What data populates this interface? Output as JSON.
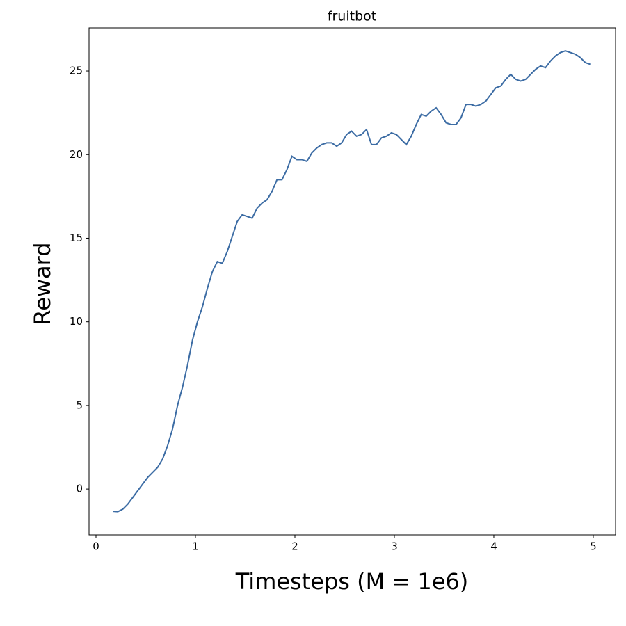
{
  "chart_data": {
    "type": "line",
    "title": "fruitbot",
    "x_label": "Timesteps (M = 1e6)",
    "y_label": "Reward",
    "x": [
      0.17,
      0.22,
      0.27,
      0.32,
      0.37,
      0.42,
      0.47,
      0.52,
      0.57,
      0.62,
      0.67,
      0.72,
      0.77,
      0.82,
      0.87,
      0.92,
      0.97,
      1.02,
      1.07,
      1.12,
      1.17,
      1.22,
      1.27,
      1.32,
      1.37,
      1.42,
      1.47,
      1.52,
      1.57,
      1.62,
      1.67,
      1.72,
      1.77,
      1.82,
      1.87,
      1.92,
      1.97,
      2.02,
      2.07,
      2.12,
      2.17,
      2.22,
      2.27,
      2.32,
      2.37,
      2.42,
      2.47,
      2.52,
      2.57,
      2.62,
      2.67,
      2.72,
      2.77,
      2.82,
      2.87,
      2.92,
      2.97,
      3.02,
      3.07,
      3.12,
      3.17,
      3.22,
      3.27,
      3.32,
      3.37,
      3.42,
      3.47,
      3.52,
      3.57,
      3.62,
      3.67,
      3.72,
      3.77,
      3.82,
      3.87,
      3.92,
      3.97,
      4.02,
      4.07,
      4.12,
      4.17,
      4.22,
      4.27,
      4.32,
      4.37,
      4.42,
      4.47,
      4.52,
      4.57,
      4.62,
      4.67,
      4.72,
      4.77,
      4.82,
      4.87,
      4.92,
      4.97
    ],
    "series": [
      {
        "name": "fruitbot",
        "color": "#3c6ca4",
        "values": [
          -1.33,
          -1.35,
          -1.2,
          -0.9,
          -0.5,
          -0.1,
          0.3,
          0.7,
          1.0,
          1.3,
          1.8,
          2.6,
          3.6,
          5.0,
          6.1,
          7.4,
          8.9,
          10.0,
          10.9,
          12.0,
          13.0,
          13.6,
          13.5,
          14.2,
          15.1,
          16.0,
          16.4,
          16.3,
          16.2,
          16.8,
          17.1,
          17.3,
          17.8,
          18.5,
          18.5,
          19.1,
          19.9,
          19.7,
          19.7,
          19.6,
          20.1,
          20.4,
          20.6,
          20.7,
          20.7,
          20.5,
          20.7,
          21.2,
          21.4,
          21.1,
          21.2,
          21.5,
          20.6,
          20.6,
          21.0,
          21.1,
          21.3,
          21.2,
          20.9,
          20.6,
          21.1,
          21.8,
          22.4,
          22.3,
          22.6,
          22.8,
          22.4,
          21.9,
          21.8,
          21.8,
          22.2,
          23.0,
          23.0,
          22.9,
          23.0,
          23.2,
          23.6,
          24.0,
          24.1,
          24.5,
          24.8,
          24.5,
          24.4,
          24.5,
          24.8,
          25.1,
          25.3,
          25.2,
          25.6,
          25.9,
          26.1,
          26.2,
          26.1,
          26.0,
          25.8,
          25.5,
          25.4
        ]
      }
    ],
    "xlim": [
      -0.07,
      5.224
    ],
    "xticks": [
      0,
      1,
      2,
      3,
      4,
      5
    ],
    "ylim": [
      -2.74,
      27.58
    ],
    "yticks": [
      0,
      5,
      10,
      15,
      20,
      25
    ],
    "grid": false
  }
}
